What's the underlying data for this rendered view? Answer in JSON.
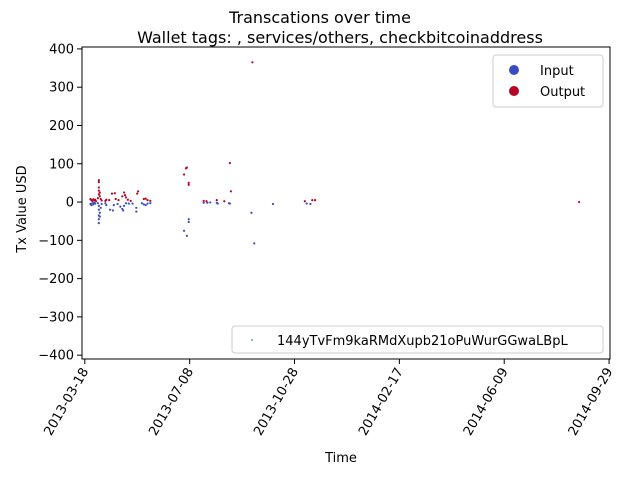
{
  "chart_data": {
    "type": "scatter",
    "title": "Transcations over time",
    "subtitle": "Wallet tags: , services/others, checkbitcoinaddress",
    "xlabel": "Time",
    "ylabel": "Tx Value USD",
    "x_ticks": [
      "2013-03-18",
      "2013-07-08",
      "2013-10-28",
      "2014-02-17",
      "2014-06-09",
      "2014-09-29"
    ],
    "y_ticks": [
      "400",
      "300",
      "200",
      "100",
      "0",
      "−100",
      "−200",
      "−300",
      "−400"
    ],
    "xlim": [
      "2013-03-15",
      "2014-09-30"
    ],
    "ylim": [
      -410,
      405
    ],
    "grid": false,
    "legend": {
      "placement": "top-right",
      "items": [
        {
          "label": "Input",
          "color": "#3b4cc0"
        },
        {
          "label": "Output",
          "color": "#b40426"
        }
      ]
    },
    "legend2": {
      "placement": "bottom-right",
      "label": "144yTvFm9kaRMdXupb21oPuWurGGwaLBpL"
    },
    "series": [
      {
        "name": "Input",
        "color": "#3b4cc0",
        "points": [
          [
            "2013-03-24",
            -5
          ],
          [
            "2013-03-25",
            -8
          ],
          [
            "2013-03-26",
            -3
          ],
          [
            "2013-03-27",
            -6
          ],
          [
            "2013-03-28",
            -2
          ],
          [
            "2013-03-29",
            -4
          ],
          [
            "2013-04-01",
            -3
          ],
          [
            "2013-04-02",
            -10
          ],
          [
            "2013-04-02",
            -20
          ],
          [
            "2013-04-02",
            -35
          ],
          [
            "2013-04-02",
            -45
          ],
          [
            "2013-04-02",
            -55
          ],
          [
            "2013-04-03",
            -28
          ],
          [
            "2013-04-03",
            -38
          ],
          [
            "2013-04-04",
            -15
          ],
          [
            "2013-04-05",
            -5
          ],
          [
            "2013-04-09",
            -3
          ],
          [
            "2013-04-10",
            -8
          ],
          [
            "2013-04-14",
            -20
          ],
          [
            "2013-04-17",
            -22
          ],
          [
            "2013-04-18",
            -8
          ],
          [
            "2013-04-22",
            -5
          ],
          [
            "2013-04-25",
            -12
          ],
          [
            "2013-04-27",
            -18
          ],
          [
            "2013-04-28",
            -22
          ],
          [
            "2013-04-29",
            -10
          ],
          [
            "2013-05-01",
            -3
          ],
          [
            "2013-05-04",
            -4
          ],
          [
            "2013-05-08",
            -4
          ],
          [
            "2013-05-12",
            -15
          ],
          [
            "2013-05-12",
            -25
          ],
          [
            "2013-05-18",
            -3
          ],
          [
            "2013-05-20",
            -6
          ],
          [
            "2013-05-22",
            -8
          ],
          [
            "2013-05-24",
            -4
          ],
          [
            "2013-05-27",
            -3
          ],
          [
            "2013-07-02",
            -75
          ],
          [
            "2013-07-05",
            -88
          ],
          [
            "2013-07-07",
            -45
          ],
          [
            "2013-07-07",
            -52
          ],
          [
            "2013-07-23",
            -2
          ],
          [
            "2013-07-27",
            -2
          ],
          [
            "2013-07-30",
            -1
          ],
          [
            "2013-08-06",
            -2
          ],
          [
            "2013-08-07",
            -4
          ],
          [
            "2013-08-19",
            -3
          ],
          [
            "2013-08-20",
            -4
          ],
          [
            "2013-09-12",
            -28
          ],
          [
            "2013-09-15",
            -108
          ],
          [
            "2013-10-05",
            -5
          ],
          [
            "2013-11-10",
            -4
          ],
          [
            "2013-11-14",
            -5
          ]
        ]
      },
      {
        "name": "Output",
        "color": "#b40426",
        "points": [
          [
            "2013-03-24",
            8
          ],
          [
            "2013-03-25",
            5
          ],
          [
            "2013-03-26",
            3
          ],
          [
            "2013-03-27",
            7
          ],
          [
            "2013-03-28",
            4
          ],
          [
            "2013-03-29",
            6
          ],
          [
            "2013-03-30",
            2
          ],
          [
            "2013-04-01",
            10
          ],
          [
            "2013-04-02",
            20
          ],
          [
            "2013-04-02",
            30
          ],
          [
            "2013-04-02",
            38
          ],
          [
            "2013-04-02",
            52
          ],
          [
            "2013-04-02",
            57
          ],
          [
            "2013-04-03",
            15
          ],
          [
            "2013-04-03",
            25
          ],
          [
            "2013-04-04",
            8
          ],
          [
            "2013-04-05",
            4
          ],
          [
            "2013-04-09",
            3
          ],
          [
            "2013-04-10",
            6
          ],
          [
            "2013-04-13",
            5
          ],
          [
            "2013-04-16",
            22
          ],
          [
            "2013-04-19",
            23
          ],
          [
            "2013-04-20",
            8
          ],
          [
            "2013-04-23",
            5
          ],
          [
            "2013-04-27",
            15
          ],
          [
            "2013-04-29",
            25
          ],
          [
            "2013-04-30",
            18
          ],
          [
            "2013-05-01",
            12
          ],
          [
            "2013-05-03",
            6
          ],
          [
            "2013-05-06",
            3
          ],
          [
            "2013-05-13",
            22
          ],
          [
            "2013-05-14",
            28
          ],
          [
            "2013-05-20",
            8
          ],
          [
            "2013-05-22",
            9
          ],
          [
            "2013-05-24",
            5
          ],
          [
            "2013-05-27",
            3
          ],
          [
            "2013-07-02",
            72
          ],
          [
            "2013-07-04",
            88
          ],
          [
            "2013-07-05",
            90
          ],
          [
            "2013-07-07",
            45
          ],
          [
            "2013-07-07",
            50
          ],
          [
            "2013-07-23",
            3
          ],
          [
            "2013-07-26",
            2
          ],
          [
            "2013-08-06",
            5
          ],
          [
            "2013-08-14",
            2
          ],
          [
            "2013-08-20",
            102
          ],
          [
            "2013-08-21",
            28
          ],
          [
            "2013-09-13",
            365
          ],
          [
            "2013-11-08",
            2
          ],
          [
            "2013-11-16",
            5
          ],
          [
            "2013-11-19",
            5
          ],
          [
            "2014-08-28",
            0
          ]
        ]
      }
    ]
  }
}
